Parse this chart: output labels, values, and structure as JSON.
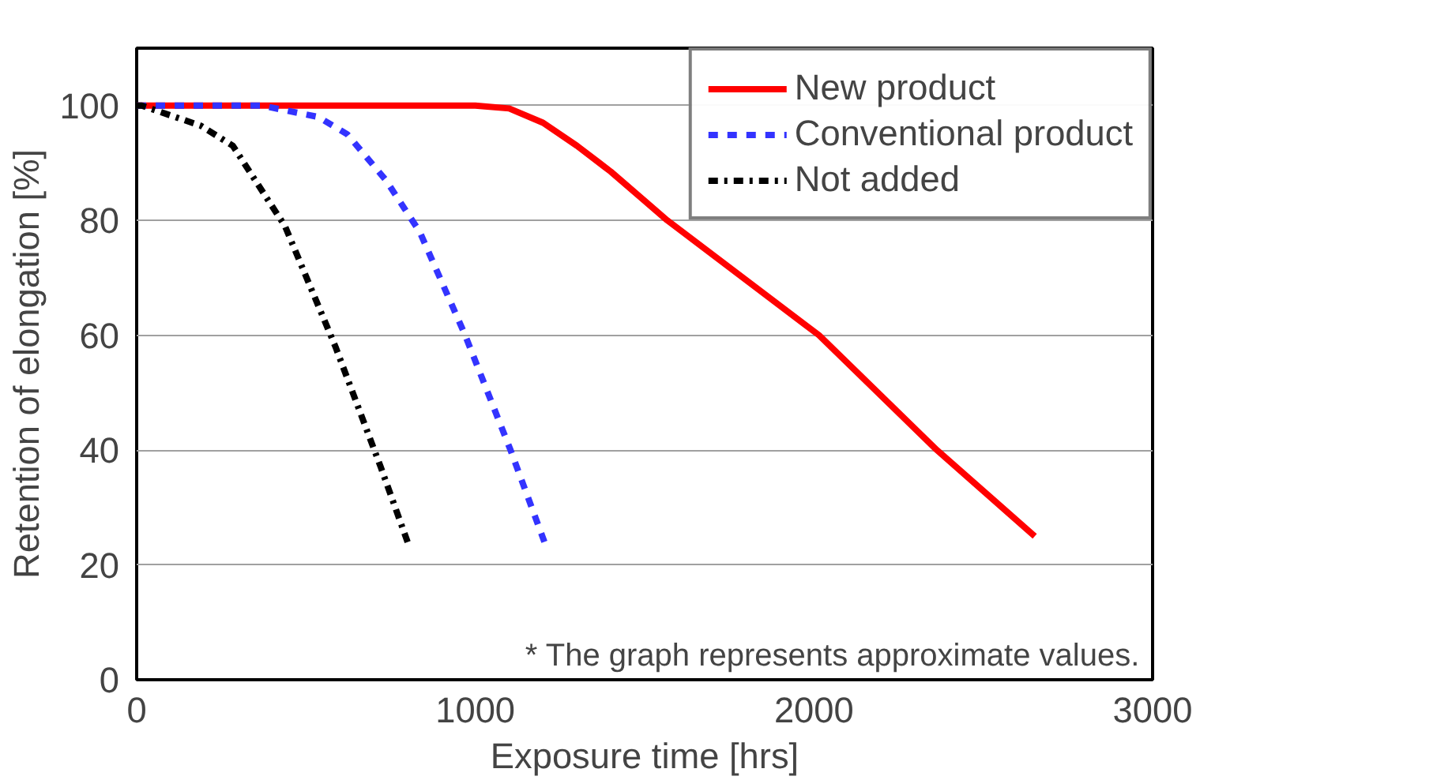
{
  "chart_data": {
    "type": "line",
    "xlabel": "Exposure time [hrs]",
    "ylabel": "Retention of elongation [%]",
    "xlim": [
      0,
      3000
    ],
    "xticks": [
      0,
      1000,
      2000,
      3000
    ],
    "ylim": [
      0,
      110
    ],
    "yticks": [
      0,
      20,
      40,
      60,
      80,
      100
    ],
    "grid": "y",
    "legend": "top right",
    "marker": "none",
    "annotations": [
      "* The graph represents approximate values."
    ],
    "series": [
      {
        "name": "New product",
        "color": "#ff0000",
        "line_style": "solid",
        "x": [
          0,
          1000,
          1100,
          1200,
          1300,
          1400,
          1567,
          2015,
          2363,
          2652
        ],
        "values": [
          100,
          100,
          99.5,
          97,
          93,
          88.5,
          80,
          60,
          40,
          25
        ]
      },
      {
        "name": "Conventional product",
        "color": "#3333ff",
        "line_style": "dashed",
        "x": [
          0,
          370,
          537,
          622,
          736,
          836,
          970,
          1104,
          1204
        ],
        "values": [
          100,
          100,
          98,
          95,
          87,
          78,
          60,
          40,
          24
        ]
      },
      {
        "name": "Not added",
        "color": "#000000",
        "line_style": "dashdot",
        "x": [
          0,
          15,
          189,
          284,
          438,
          587,
          721,
          806
        ],
        "values": [
          100,
          100,
          96.5,
          93,
          79,
          58,
          37,
          23
        ]
      }
    ]
  }
}
